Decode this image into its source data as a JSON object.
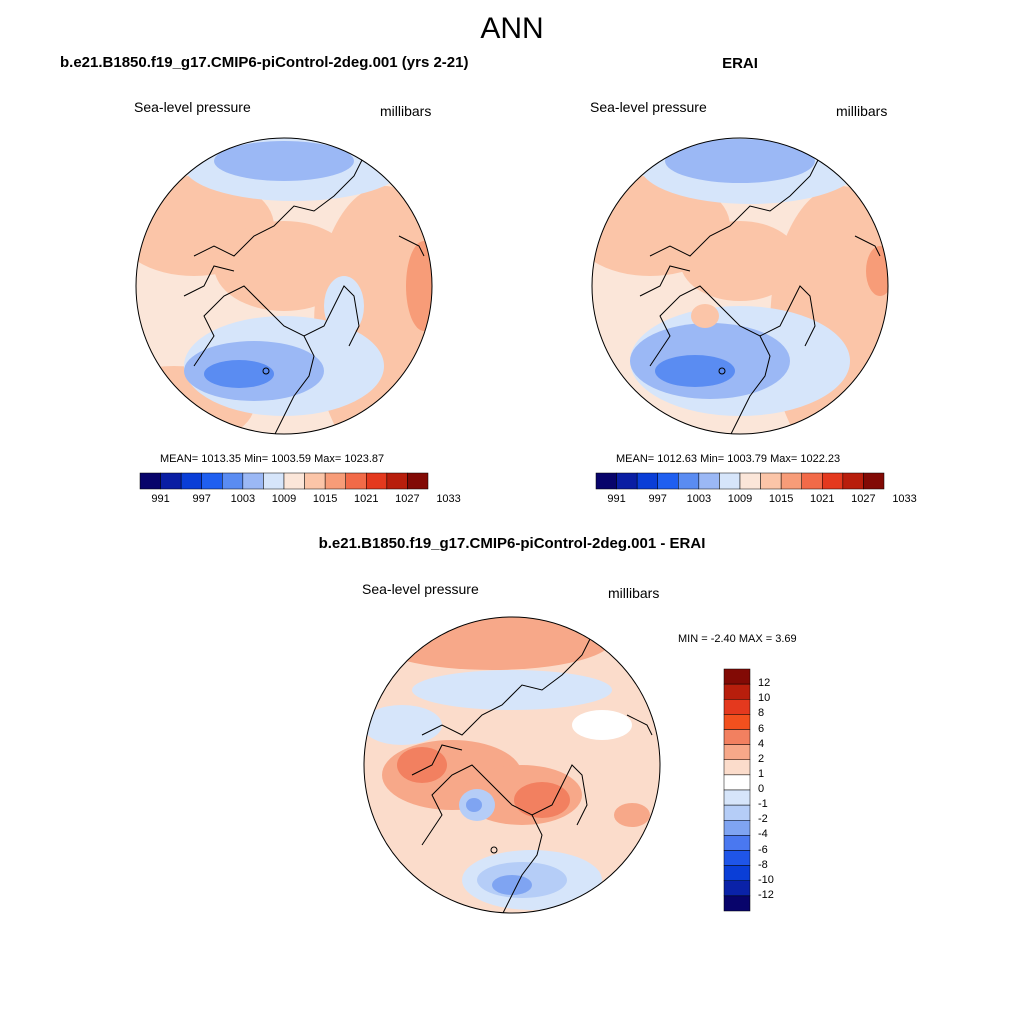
{
  "figure": {
    "season": "ANN",
    "top_left": {
      "title": "b.e21.B1850.f19_g17.CMIP6-piControl-2deg.001 (yrs 2-21)",
      "variable": "Sea-level pressure",
      "units": "millibars",
      "stats": "MEAN= 1013.35  Min= 1003.59  Max= 1023.87"
    },
    "top_right": {
      "title": "ERAI",
      "variable": "Sea-level pressure",
      "units": "millibars",
      "stats": "MEAN= 1012.63  Min= 1003.79  Max= 1022.23"
    },
    "bottom": {
      "title": "b.e21.B1850.f19_g17.CMIP6-piControl-2deg.001 - ERAI",
      "variable": "Sea-level pressure",
      "units": "millibars",
      "minmax": "MIN =  -2.40 MAX =   3.69"
    }
  },
  "colorbar_abs": {
    "colors": [
      "#08046b",
      "#0a1ea3",
      "#0a3ed7",
      "#1f5ff0",
      "#5a8cf2",
      "#9bb8f5",
      "#d6e5fa",
      "#fbe6d9",
      "#fbc5a8",
      "#f79c78",
      "#f26a48",
      "#e4391e",
      "#b81e0c",
      "#820a05"
    ],
    "labels": [
      "991",
      "997",
      "1003",
      "1009",
      "1015",
      "1021",
      "1027",
      "1033"
    ]
  },
  "colorbar_diff": {
    "colors": [
      "#820a05",
      "#b81e0c",
      "#e4391e",
      "#f2501e",
      "#f28060",
      "#f7a889",
      "#fbdccb",
      "#ffffff",
      "#d6e5fa",
      "#b5cdf7",
      "#7fa4f2",
      "#4a78f0",
      "#1f55e8",
      "#0a3ed7",
      "#0a22a8",
      "#08046b"
    ],
    "labels": [
      "12",
      "10",
      "8",
      "6",
      "4",
      "2",
      "1",
      "0",
      "-1",
      "-2",
      "-4",
      "-6",
      "-8",
      "-10",
      "-12"
    ]
  }
}
